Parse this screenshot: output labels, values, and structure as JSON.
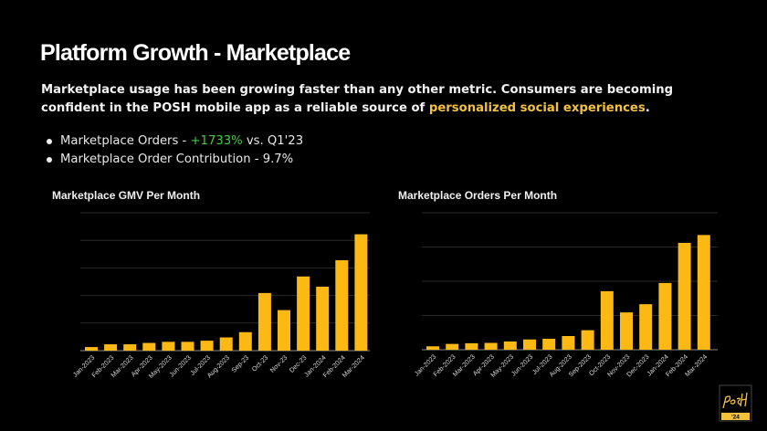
{
  "page": {
    "title": "Platform Growth - Marketplace",
    "intro_text": "Marketplace usage has been growing faster than any other metric. Consumers are becoming confident in the POSH mobile app as a reliable source of ",
    "intro_highlight": "personalized social experiences",
    "intro_end": ".",
    "highlight_color": "#f3c23c",
    "bullets": [
      {
        "prefix": "Marketplace Orders - ",
        "highlight": "+1733%",
        "suffix": " vs. Q1'23"
      },
      {
        "prefix": "Marketplace Order Contribution - 9.7%",
        "highlight": "",
        "suffix": ""
      }
    ],
    "logo": {
      "text": "POSH",
      "year": "'24"
    }
  },
  "chart_data": [
    {
      "type": "bar",
      "title": "Marketplace GMV Per Month",
      "xlabel": "",
      "ylabel": "",
      "categories": [
        "Jan-2023",
        "Feb-2023",
        "Mar-2023",
        "Apr-2023",
        "May-2023",
        "Jun-2023",
        "Jul-2023",
        "Aug-2023",
        "Sep-23",
        "Oct-23",
        "Nov-23",
        "Dec-23",
        "Jan-2024",
        "Feb-2024",
        "Mar-2024"
      ],
      "values": [
        0.13,
        0.23,
        0.23,
        0.28,
        0.32,
        0.32,
        0.36,
        0.48,
        0.67,
        2.09,
        1.47,
        2.69,
        2.32,
        3.28,
        4.22
      ],
      "value_units": "gridline units (y-axis tick labels not shown)",
      "ylim": [
        0,
        5
      ],
      "gridlines": 5,
      "grid": true,
      "bar_color": "#fdb913"
    },
    {
      "type": "bar",
      "title": "Marketplace Orders Per Month",
      "xlabel": "",
      "ylabel": "",
      "categories": [
        "Jan-2023",
        "Feb-2023",
        "Mar-2023",
        "Apr-2023",
        "May-2023",
        "Jun-2023",
        "Jul-2023",
        "Aug-2023",
        "Sep-2023",
        "Oct-2023",
        "Nov-2023",
        "Dec-2023",
        "Jan-2024",
        "Feb-2024",
        "Mar-2024"
      ],
      "values": [
        0.1,
        0.17,
        0.19,
        0.2,
        0.24,
        0.3,
        0.32,
        0.4,
        0.57,
        1.71,
        1.09,
        1.33,
        1.95,
        3.12,
        3.35
      ],
      "value_units": "gridline units (y-axis tick labels not shown)",
      "ylim": [
        0,
        4
      ],
      "gridlines": 4,
      "grid": true,
      "bar_color": "#fdb913"
    }
  ]
}
